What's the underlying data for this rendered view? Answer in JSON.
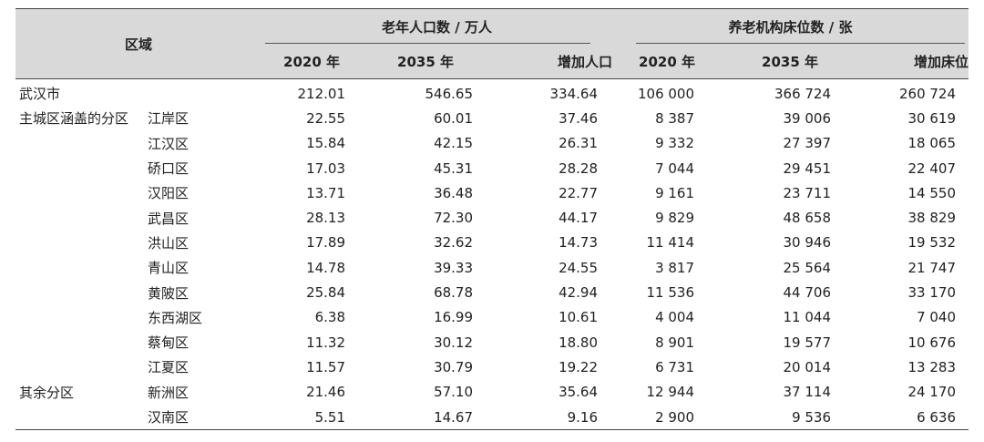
{
  "header": {
    "region_label": "区域",
    "elderly_group": "老年人口数 / 万人",
    "beds_group": "养老机构床位数 / 张",
    "sub": [
      "2020 年",
      "2035 年",
      "增加人口",
      "2020 年",
      "2035 年",
      "增加床位"
    ]
  },
  "rows": [
    {
      "group": "武汉市",
      "district": "",
      "p2020": "212.01",
      "p2035": "546.65",
      "pinc": "334.64",
      "b2020": "106 000",
      "b2035": "366 724",
      "binc": "260 724"
    },
    {
      "group": "主城区涵盖的分区",
      "district": "江岸区",
      "p2020": "22.55",
      "p2035": "60.01",
      "pinc": "37.46",
      "b2020": "8 387",
      "b2035": "39 006",
      "binc": "30 619"
    },
    {
      "group": "",
      "district": "江汉区",
      "p2020": "15.84",
      "p2035": "42.15",
      "pinc": "26.31",
      "b2020": "9 332",
      "b2035": "27 397",
      "binc": "18 065"
    },
    {
      "group": "",
      "district": "硚口区",
      "p2020": "17.03",
      "p2035": "45.31",
      "pinc": "28.28",
      "b2020": "7 044",
      "b2035": "29 451",
      "binc": "22 407"
    },
    {
      "group": "",
      "district": "汉阳区",
      "p2020": "13.71",
      "p2035": "36.48",
      "pinc": "22.77",
      "b2020": "9 161",
      "b2035": "23 711",
      "binc": "14 550"
    },
    {
      "group": "",
      "district": "武昌区",
      "p2020": "28.13",
      "p2035": "72.30",
      "pinc": "44.17",
      "b2020": "9 829",
      "b2035": "48 658",
      "binc": "38 829"
    },
    {
      "group": "",
      "district": "洪山区",
      "p2020": "17.89",
      "p2035": "32.62",
      "pinc": "14.73",
      "b2020": "11 414",
      "b2035": "30 946",
      "binc": "19 532"
    },
    {
      "group": "",
      "district": "青山区",
      "p2020": "14.78",
      "p2035": "39.33",
      "pinc": "24.55",
      "b2020": "3 817",
      "b2035": "25 564",
      "binc": "21 747"
    },
    {
      "group": "",
      "district": "黄陂区",
      "p2020": "25.84",
      "p2035": "68.78",
      "pinc": "42.94",
      "b2020": "11 536",
      "b2035": "44 706",
      "binc": "33 170"
    },
    {
      "group": "",
      "district": "东西湖区",
      "p2020": "6.38",
      "p2035": "16.99",
      "pinc": "10.61",
      "b2020": "4 004",
      "b2035": "11 044",
      "binc": "7 040"
    },
    {
      "group": "",
      "district": "蔡甸区",
      "p2020": "11.32",
      "p2035": "30.12",
      "pinc": "18.80",
      "b2020": "8 901",
      "b2035": "19 577",
      "binc": "10 676"
    },
    {
      "group": "",
      "district": "江夏区",
      "p2020": "11.57",
      "p2035": "30.79",
      "pinc": "19.22",
      "b2020": "6 731",
      "b2035": "20 014",
      "binc": "13 283"
    },
    {
      "group": "其余分区",
      "district": "新洲区",
      "p2020": "21.46",
      "p2035": "57.10",
      "pinc": "35.64",
      "b2020": "12 944",
      "b2035": "37 114",
      "binc": "24 170"
    },
    {
      "group": "",
      "district": "汉南区",
      "p2020": "5.51",
      "p2035": "14.67",
      "pinc": "9.16",
      "b2020": "2 900",
      "b2035": "9 536",
      "binc": "6 636"
    }
  ]
}
